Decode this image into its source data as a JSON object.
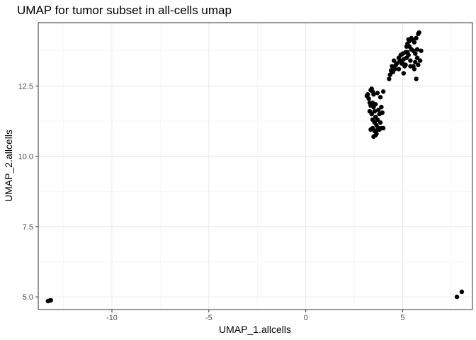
{
  "chart_data": {
    "type": "scatter",
    "title": "UMAP for tumor subset in all-cells umap",
    "xlabel": "UMAP_1.allcells",
    "ylabel": "UMAP_2.allcells",
    "xlim": [
      -13.8,
      8.6
    ],
    "ylim": [
      4.55,
      14.75
    ],
    "x_ticks": [
      -10,
      -5,
      0,
      5
    ],
    "x_tick_labels": [
      "-10",
      "-5",
      "0",
      "5"
    ],
    "y_ticks": [
      5.0,
      7.5,
      10.0,
      12.5
    ],
    "y_tick_labels": [
      "5.0",
      "7.5",
      "10.0",
      "12.5"
    ],
    "grid": true,
    "point_color": "#000000",
    "points": [
      [
        -13.3,
        4.85
      ],
      [
        -13.2,
        4.87
      ],
      [
        -13.15,
        4.88
      ],
      [
        7.8,
        5.0
      ],
      [
        8.05,
        5.18
      ],
      [
        3.15,
        12.15
      ],
      [
        3.2,
        12.2
      ],
      [
        3.25,
        12.05
      ],
      [
        3.3,
        11.9
      ],
      [
        3.35,
        11.8
      ],
      [
        3.35,
        12.35
      ],
      [
        3.4,
        12.4
      ],
      [
        3.45,
        12.3
      ],
      [
        3.5,
        12.2
      ],
      [
        3.3,
        11.6
      ],
      [
        3.4,
        11.5
      ],
      [
        3.45,
        11.9
      ],
      [
        3.5,
        11.75
      ],
      [
        3.55,
        11.6
      ],
      [
        3.6,
        11.85
      ],
      [
        3.45,
        11.3
      ],
      [
        3.55,
        11.2
      ],
      [
        3.6,
        11.4
      ],
      [
        3.65,
        11.1
      ],
      [
        3.7,
        11.3
      ],
      [
        3.75,
        11.0
      ],
      [
        3.35,
        10.95
      ],
      [
        3.45,
        11.0
      ],
      [
        3.55,
        10.9
      ],
      [
        3.6,
        10.75
      ],
      [
        3.5,
        10.7
      ],
      [
        3.65,
        10.8
      ],
      [
        3.7,
        10.95
      ],
      [
        3.75,
        11.65
      ],
      [
        3.8,
        11.5
      ],
      [
        3.85,
        11.2
      ],
      [
        3.8,
        10.95
      ],
      [
        3.9,
        11.0
      ],
      [
        4.0,
        11.0
      ],
      [
        3.9,
        11.75
      ],
      [
        3.95,
        11.55
      ],
      [
        4.0,
        12.3
      ],
      [
        3.85,
        12.1
      ],
      [
        3.7,
        12.25
      ],
      [
        4.3,
        12.75
      ],
      [
        4.35,
        12.9
      ],
      [
        4.4,
        13.05
      ],
      [
        4.45,
        13.2
      ],
      [
        4.5,
        13.0
      ],
      [
        4.6,
        13.1
      ],
      [
        4.7,
        13.3
      ],
      [
        4.8,
        13.5
      ],
      [
        4.85,
        13.4
      ],
      [
        4.9,
        13.6
      ],
      [
        4.95,
        13.3
      ],
      [
        5.0,
        13.65
      ],
      [
        5.05,
        13.45
      ],
      [
        5.1,
        13.2
      ],
      [
        5.15,
        13.7
      ],
      [
        5.2,
        13.9
      ],
      [
        5.25,
        14.0
      ],
      [
        5.3,
        14.15
      ],
      [
        5.35,
        13.9
      ],
      [
        5.2,
        13.5
      ],
      [
        5.3,
        13.6
      ],
      [
        5.4,
        13.4
      ],
      [
        5.45,
        13.8
      ],
      [
        5.5,
        14.15
      ],
      [
        5.55,
        13.75
      ],
      [
        5.6,
        14.05
      ],
      [
        5.65,
        13.65
      ],
      [
        5.7,
        14.2
      ],
      [
        5.75,
        13.8
      ],
      [
        5.8,
        14.35
      ],
      [
        5.85,
        14.4
      ],
      [
        5.55,
        13.2
      ],
      [
        5.65,
        13.35
      ],
      [
        5.75,
        13.5
      ],
      [
        5.8,
        13.25
      ],
      [
        5.9,
        13.4
      ],
      [
        5.95,
        13.75
      ],
      [
        5.7,
        12.75
      ],
      [
        5.6,
        13.1
      ],
      [
        5.4,
        13.2
      ],
      [
        5.45,
        14.2
      ],
      [
        5.35,
        14.1
      ],
      [
        5.25,
        13.7
      ],
      [
        5.15,
        13.25
      ],
      [
        5.05,
        12.95
      ],
      [
        5.0,
        13.3
      ],
      [
        4.8,
        13.1
      ],
      [
        4.65,
        13.25
      ],
      [
        4.55,
        13.4
      ]
    ]
  }
}
